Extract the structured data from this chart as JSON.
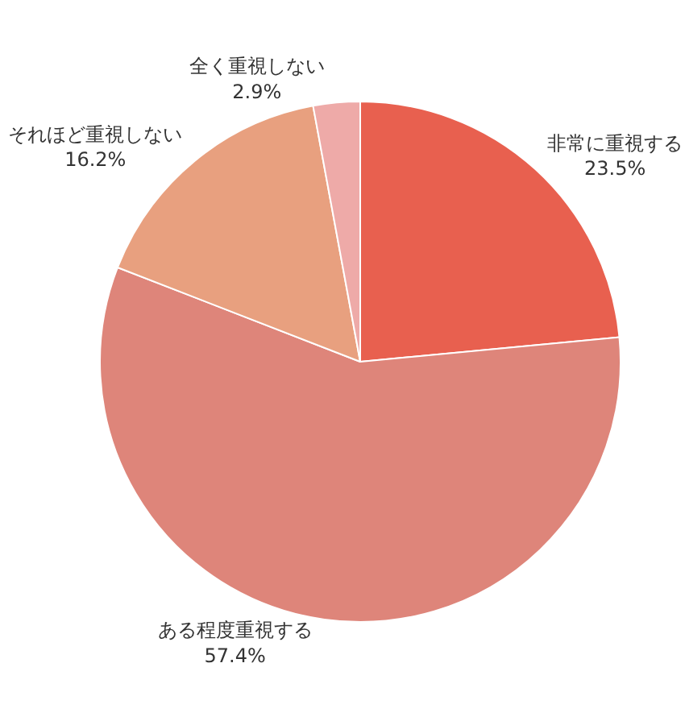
{
  "chart_data": {
    "type": "pie",
    "categories": [
      "非常に重視する",
      "ある程度重視する",
      "それほど重視しない",
      "全く重視しない"
    ],
    "values": [
      23.5,
      57.4,
      16.2,
      2.9
    ],
    "value_labels": [
      "23.5%",
      "57.4%",
      "16.2%",
      "2.9%"
    ],
    "colors": [
      "#e8604f",
      "#de857a",
      "#e8a07f",
      "#eeaaa8"
    ],
    "legend": false
  }
}
